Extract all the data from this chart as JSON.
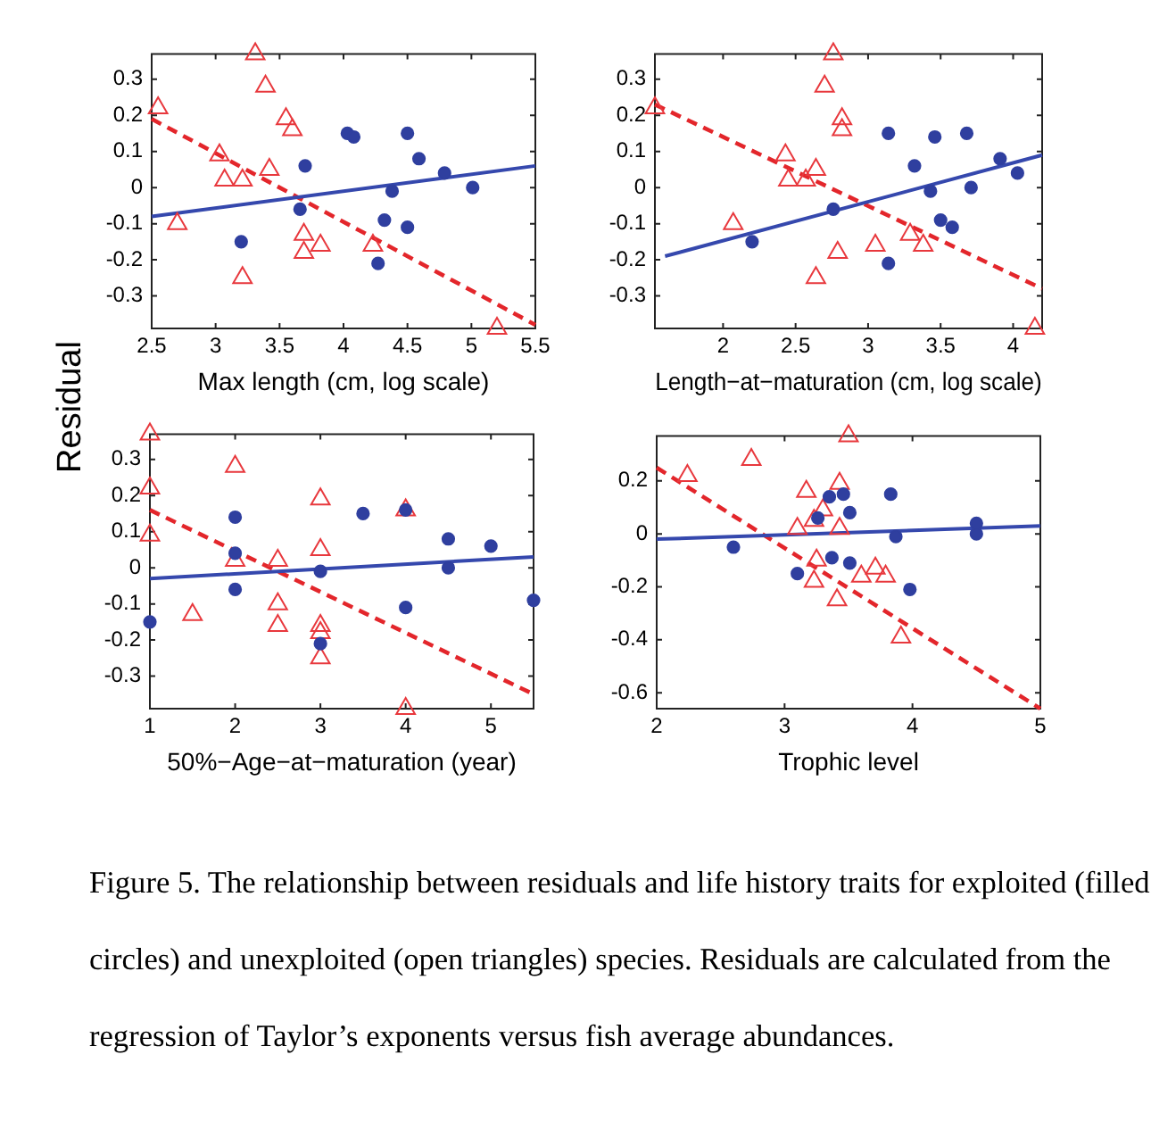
{
  "chart_data": [
    {
      "type": "scatter",
      "xlabel": "Max length (cm, log scale)",
      "ylabel": "Residual",
      "xlim": [
        2.5,
        5.5
      ],
      "xticks": [
        2.5,
        3,
        3.5,
        4,
        4.5,
        5,
        5.5
      ],
      "ylim": [
        -0.39,
        0.37
      ],
      "yticks": [
        -0.3,
        -0.2,
        -0.1,
        0,
        0.1,
        0.2,
        0.3
      ],
      "series": [
        {
          "marker": "circle",
          "color": "#2f3f9f",
          "x": [
            3.2,
            3.7,
            3.66,
            4.03,
            4.08,
            4.38,
            4.32,
            4.27,
            4.5,
            4.5,
            4.59,
            4.79,
            5.01
          ],
          "values": [
            -0.15,
            0.06,
            -0.06,
            0.15,
            0.14,
            -0.01,
            -0.09,
            -0.21,
            0.15,
            -0.11,
            0.08,
            0.04,
            0.0
          ]
        },
        {
          "marker": "triangle",
          "color": "#e8383d",
          "x": [
            2.55,
            2.7,
            3.03,
            3.07,
            3.21,
            3.21,
            3.31,
            3.39,
            3.42,
            3.55,
            3.6,
            3.69,
            3.69,
            3.82,
            4.23,
            5.2
          ],
          "values": [
            0.22,
            -0.1,
            0.09,
            0.02,
            0.02,
            -0.25,
            0.37,
            0.28,
            0.05,
            0.19,
            0.16,
            -0.13,
            -0.18,
            -0.16,
            -0.16,
            -0.39
          ]
        },
        {
          "type": "line",
          "marker": "none",
          "line_style": "solid",
          "color": "#3548ad",
          "x": [
            2.5,
            5.5
          ],
          "values": [
            -0.08,
            0.06
          ]
        },
        {
          "type": "line",
          "marker": "none",
          "line_style": "dashed",
          "color": "#e3262b",
          "x": [
            2.5,
            5.5
          ],
          "values": [
            0.19,
            -0.38
          ]
        }
      ]
    },
    {
      "type": "scatter",
      "xlabel": "Length−at−maturation (cm, log scale)",
      "xlim": [
        1.53,
        4.2
      ],
      "xticks": [
        2,
        2.5,
        3,
        3.5,
        4
      ],
      "ylim": [
        -0.39,
        0.37
      ],
      "yticks": [
        -0.3,
        -0.2,
        -0.1,
        0,
        0.1,
        0.2,
        0.3
      ],
      "series": [
        {
          "marker": "circle",
          "color": "#2f3f9f",
          "x": [
            2.2,
            2.76,
            3.14,
            3.14,
            3.32,
            3.43,
            3.46,
            3.5,
            3.58,
            3.68,
            3.71,
            3.91,
            4.03
          ],
          "values": [
            -0.15,
            -0.06,
            0.15,
            -0.21,
            0.06,
            -0.01,
            0.14,
            -0.09,
            -0.11,
            0.15,
            0.0,
            0.08,
            0.04
          ]
        },
        {
          "marker": "triangle",
          "color": "#e8383d",
          "x": [
            1.53,
            2.07,
            2.43,
            2.45,
            2.57,
            2.64,
            2.64,
            2.76,
            2.7,
            2.82,
            2.82,
            2.79,
            3.05,
            3.29,
            3.38,
            4.15
          ],
          "values": [
            0.22,
            -0.1,
            0.09,
            0.02,
            0.02,
            0.05,
            -0.25,
            0.37,
            0.28,
            0.19,
            0.16,
            -0.18,
            -0.16,
            -0.13,
            -0.16,
            -0.39
          ]
        },
        {
          "type": "line",
          "marker": "none",
          "line_style": "solid",
          "color": "#3548ad",
          "x": [
            1.6,
            4.2
          ],
          "values": [
            -0.19,
            0.09
          ]
        },
        {
          "type": "line",
          "marker": "none",
          "line_style": "dashed",
          "color": "#e3262b",
          "x": [
            1.53,
            4.2
          ],
          "values": [
            0.23,
            -0.28
          ]
        }
      ]
    },
    {
      "type": "scatter",
      "xlabel": "50%−Age−at−maturation (year)",
      "xlim": [
        1,
        5.5
      ],
      "xticks": [
        1,
        2,
        3,
        4,
        5
      ],
      "ylim": [
        -0.39,
        0.37
      ],
      "yticks": [
        -0.3,
        -0.2,
        -0.1,
        0,
        0.1,
        0.2,
        0.3
      ],
      "series": [
        {
          "marker": "circle",
          "color": "#2f3f9f",
          "x": [
            1,
            2,
            2,
            2,
            3,
            3,
            3.5,
            4,
            4,
            4.5,
            4.5,
            5,
            5.5
          ],
          "values": [
            -0.15,
            0.14,
            0.04,
            -0.06,
            -0.01,
            -0.21,
            0.15,
            0.16,
            -0.11,
            0.08,
            0.0,
            0.06,
            -0.09
          ]
        },
        {
          "marker": "triangle",
          "color": "#e8383d",
          "x": [
            1,
            1,
            1,
            1.5,
            2,
            2,
            2.5,
            2.5,
            2.5,
            3,
            3,
            3,
            3,
            3,
            4,
            4
          ],
          "values": [
            0.37,
            0.22,
            0.09,
            -0.13,
            0.28,
            0.02,
            0.02,
            -0.1,
            -0.16,
            0.19,
            0.05,
            -0.16,
            -0.18,
            -0.25,
            0.16,
            -0.39
          ]
        },
        {
          "type": "line",
          "marker": "none",
          "line_style": "solid",
          "color": "#3548ad",
          "x": [
            1,
            5.5
          ],
          "values": [
            -0.03,
            0.03
          ]
        },
        {
          "type": "line",
          "marker": "none",
          "line_style": "dashed",
          "color": "#e3262b",
          "x": [
            1,
            5.5
          ],
          "values": [
            0.16,
            -0.35
          ]
        }
      ]
    },
    {
      "type": "scatter",
      "xlabel": "Trophic level",
      "xlim": [
        2,
        5
      ],
      "xticks": [
        2,
        3,
        4,
        5
      ],
      "ylim": [
        -0.66,
        0.37
      ],
      "yticks": [
        -0.6,
        -0.4,
        -0.2,
        0,
        0.2
      ],
      "annotations": [
        "Figure 5. The relationship between residuals and life history traits for exploited (filled circles) and unexploited (open triangles) species. Residuals are calculated from the regression of Taylor’s exponents versus fish average abundances."
      ],
      "series": [
        {
          "marker": "circle",
          "color": "#2f3f9f",
          "x": [
            2.6,
            3.1,
            3.26,
            3.35,
            3.46,
            3.37,
            3.51,
            3.51,
            3.83,
            3.87,
            3.98,
            4.5,
            4.5
          ],
          "values": [
            -0.05,
            -0.15,
            0.06,
            0.14,
            0.15,
            -0.09,
            0.08,
            -0.11,
            0.15,
            -0.01,
            -0.21,
            0.04,
            0.0
          ]
        },
        {
          "marker": "triangle",
          "color": "#e8383d",
          "x": [
            2.24,
            2.74,
            3.5,
            3.17,
            3.43,
            3.3,
            3.1,
            3.23,
            3.43,
            3.25,
            3.23,
            3.41,
            3.6,
            3.71,
            3.79,
            3.91
          ],
          "values": [
            0.22,
            0.28,
            0.37,
            0.16,
            0.19,
            0.09,
            0.02,
            0.05,
            0.02,
            -0.1,
            -0.18,
            -0.25,
            -0.16,
            -0.13,
            -0.16,
            -0.39
          ]
        },
        {
          "type": "line",
          "marker": "none",
          "line_style": "solid",
          "color": "#3548ad",
          "x": [
            2,
            5
          ],
          "values": [
            -0.02,
            0.03
          ]
        },
        {
          "type": "line",
          "marker": "none",
          "line_style": "dashed",
          "color": "#e3262b",
          "x": [
            2,
            5
          ],
          "values": [
            0.25,
            -0.66
          ]
        }
      ]
    }
  ]
}
